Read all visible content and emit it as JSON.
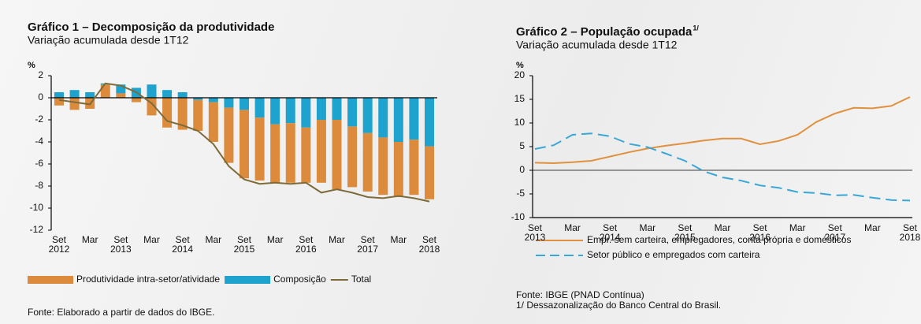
{
  "chart_data": [
    {
      "type": "bar",
      "title": "Gráfico 1 – Decomposição da produtividade",
      "subtitle": "Variação acumulada desde 1T12",
      "unit": "%",
      "categories": [
        "Set 2012",
        null,
        "Mar",
        null,
        "Set 2013",
        null,
        "Mar",
        null,
        "Set 2014",
        null,
        "Mar",
        null,
        "Set 2015",
        null,
        "Mar",
        null,
        "Set 2016",
        null,
        "Mar",
        null,
        "Set 2017",
        null,
        "Mar",
        null,
        "Set 2018"
      ],
      "series": [
        {
          "name": "Produtividade intra-setor/atividade",
          "type": "bar",
          "color": "#dc8a3c",
          "values": [
            -0.7,
            -1.1,
            -1.0,
            1.2,
            0.4,
            -0.4,
            -1.6,
            -2.7,
            -2.9,
            -2.8,
            -3.6,
            -5.0,
            -6.2,
            -5.7,
            -5.3,
            -5.4,
            -5.0,
            -5.7,
            -6.3,
            -5.5,
            -5.3,
            -5.2,
            -5.0,
            -5.0,
            -4.8
          ]
        },
        {
          "name": "Composição",
          "type": "bar",
          "color": "#1ea3cf",
          "values": [
            0.5,
            0.7,
            0.5,
            0.1,
            0.8,
            0.9,
            1.2,
            0.7,
            0.5,
            -0.2,
            -0.4,
            -0.9,
            -1.1,
            -1.8,
            -2.4,
            -2.3,
            -2.7,
            -2.0,
            -2.0,
            -2.6,
            -3.2,
            -3.6,
            -4.0,
            -3.8,
            -4.4
          ]
        },
        {
          "name": "Total",
          "type": "line",
          "color": "#7d6b3a",
          "values": [
            -0.2,
            -0.4,
            -0.6,
            1.3,
            1.1,
            0.5,
            -0.5,
            -2.1,
            -2.5,
            -3.0,
            -4.2,
            -6.2,
            -7.4,
            -7.8,
            -7.7,
            -7.8,
            -7.7,
            -8.6,
            -8.3,
            -8.6,
            -9.0,
            -9.1,
            -8.9,
            -9.1,
            -9.4
          ]
        }
      ],
      "ylim": [
        -12,
        2
      ],
      "yticks": [
        -12,
        -10,
        -8,
        -6,
        -4,
        -2,
        0,
        2
      ],
      "notes": [
        "Fonte: Elaborado a partir de dados do IBGE."
      ]
    },
    {
      "type": "line",
      "title": "Gráfico 2 – População ocupada",
      "title_note": "1/",
      "subtitle": "Variação acumulada desde 1T12",
      "unit": "%",
      "categories": [
        "Set 2013",
        null,
        "Mar",
        null,
        "Set 2014",
        null,
        "Mar",
        null,
        "Set 2015",
        null,
        "Mar",
        null,
        "Set 2016",
        null,
        "Mar",
        null,
        "Set 2017",
        null,
        "Mar",
        null,
        "Set 2018"
      ],
      "series": [
        {
          "name": "Empr. sem carteira, empregadores, conta própria e domésticos",
          "color": "#e0913f",
          "dashed": false,
          "values": [
            1.6,
            1.5,
            1.7,
            2.0,
            2.9,
            3.8,
            4.6,
            5.2,
            5.7,
            6.3,
            6.7,
            6.7,
            5.5,
            6.2,
            7.5,
            10.2,
            12.0,
            13.2,
            13.1,
            13.6,
            15.5
          ]
        },
        {
          "name": "Setor público e empregados com carteira",
          "color": "#39a7d6",
          "dashed": true,
          "values": [
            4.5,
            5.3,
            7.5,
            7.8,
            7.2,
            5.6,
            4.9,
            3.5,
            2.0,
            -0.2,
            -1.5,
            -2.2,
            -3.2,
            -3.7,
            -4.6,
            -4.8,
            -5.3,
            -5.2,
            -5.8,
            -6.3,
            -6.4
          ]
        }
      ],
      "ylim": [
        -10,
        20
      ],
      "yticks": [
        -10,
        -5,
        0,
        5,
        10,
        15,
        20
      ],
      "notes": [
        "Fonte: IBGE (PNAD Contínua)",
        "1/ Dessazonalização do Banco Central do Brasil."
      ]
    }
  ]
}
